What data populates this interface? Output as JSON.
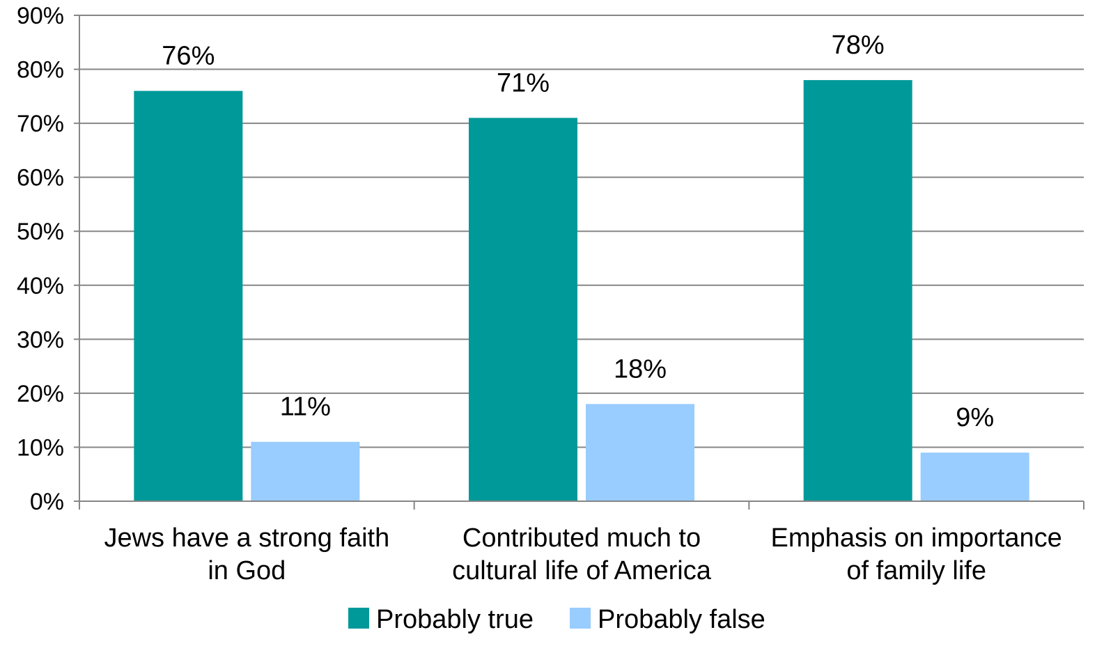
{
  "chart_data": {
    "type": "bar",
    "categories": [
      [
        "Jews have a strong faith",
        "in God"
      ],
      [
        "Contributed much to",
        "cultural life of America"
      ],
      [
        "Emphasis on importance",
        "of family life"
      ]
    ],
    "series": [
      {
        "name": "Probably true",
        "color": "#009999",
        "values": [
          76,
          71,
          78
        ],
        "labels": [
          "76%",
          "71%",
          "78%"
        ]
      },
      {
        "name": "Probably false",
        "color": "#99CCFF",
        "values": [
          11,
          18,
          9
        ],
        "labels": [
          "11%",
          "18%",
          "9%"
        ]
      }
    ],
    "yticks": [
      "0%",
      "10%",
      "20%",
      "30%",
      "40%",
      "50%",
      "60%",
      "70%",
      "80%",
      "90%"
    ],
    "ylim": [
      0,
      90
    ],
    "grid": true,
    "legend": "bottom",
    "title": "",
    "xlabel": "",
    "ylabel": ""
  }
}
